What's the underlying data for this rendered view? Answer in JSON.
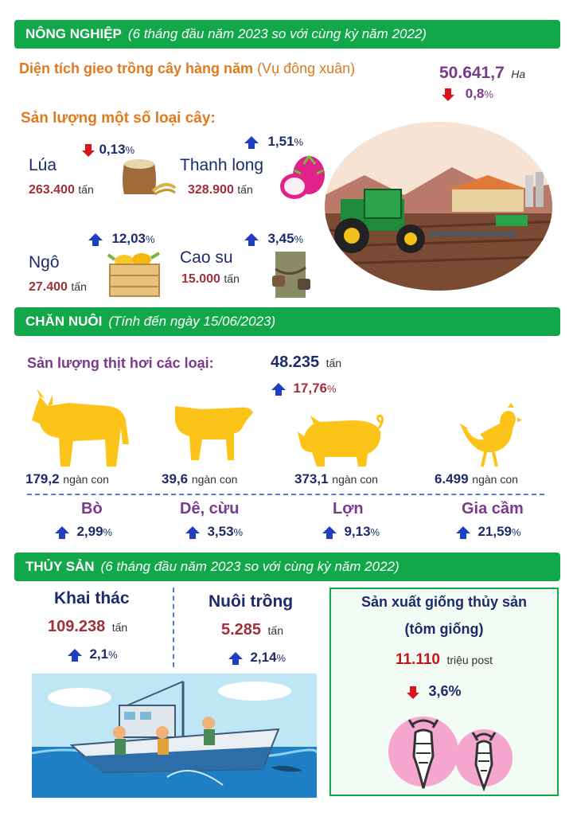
{
  "agriculture": {
    "title": "NÔNG NGHIỆP",
    "subtitle": "(6 tháng đầu năm 2023 so với cùng kỳ năm 2022)",
    "area_label": "Diện tích gieo trồng cây hàng năm",
    "area_season": "(Vụ đông xuân)",
    "area_value": "50.641,7",
    "area_unit": "Ha",
    "area_change": "0,8",
    "output_label": "Sản lượng một số loại cây:",
    "crops": [
      {
        "name": "Lúa",
        "value": "263.400",
        "unit": "tấn",
        "change": "0,13",
        "direction": "down"
      },
      {
        "name": "Thanh long",
        "value": "328.900",
        "unit": "tấn",
        "change": "1,51",
        "direction": "up"
      },
      {
        "name": "Ngô",
        "value": "27.400",
        "unit": "tấn",
        "change": "12,03",
        "direction": "up"
      },
      {
        "name": "Cao su",
        "value": "15.000",
        "unit": "tấn",
        "change": "3,45",
        "direction": "up"
      }
    ]
  },
  "livestock": {
    "title": "CHĂN NUÔI",
    "subtitle": "(Tính đến ngày 15/06/2023)",
    "meat_label": "Sản lượng thịt hơi các loại:",
    "meat_value": "48.235",
    "meat_unit": "tấn",
    "meat_change": "17,76",
    "animals": [
      {
        "name": "Bò",
        "value": "179,2",
        "unit": "ngàn con",
        "change": "2,99"
      },
      {
        "name": "Dê, cừu",
        "value": "39,6",
        "unit": "ngàn con",
        "change": "3,53"
      },
      {
        "name": "Lợn",
        "value": "373,1",
        "unit": "ngàn con",
        "change": "9,13"
      },
      {
        "name": "Gia cầm",
        "value": "6.499",
        "unit": "ngàn con",
        "change": "21,59"
      }
    ]
  },
  "fishery": {
    "title": "THỦY SẢN",
    "subtitle": "(6 tháng đầu năm 2023 so với cùng kỳ năm 2022)",
    "catch_label": "Khai thác",
    "catch_value": "109.238",
    "catch_unit": "tấn",
    "catch_change": "2,1",
    "farm_label": "Nuôi trồng",
    "farm_value": "5.285",
    "farm_unit": "tấn",
    "farm_change": "2,14",
    "seed_label_1": "Sản xuất giống thủy sản",
    "seed_label_2": "(tôm giống)",
    "seed_value": "11.110",
    "seed_unit": "triệu post",
    "seed_change": "3,6%"
  },
  "percent_sign": "%",
  "colors": {
    "banner": "#12a84a",
    "up_arrow": "#1f3fbf",
    "down_arrow": "#d9141b",
    "animal": "#fcc419"
  }
}
